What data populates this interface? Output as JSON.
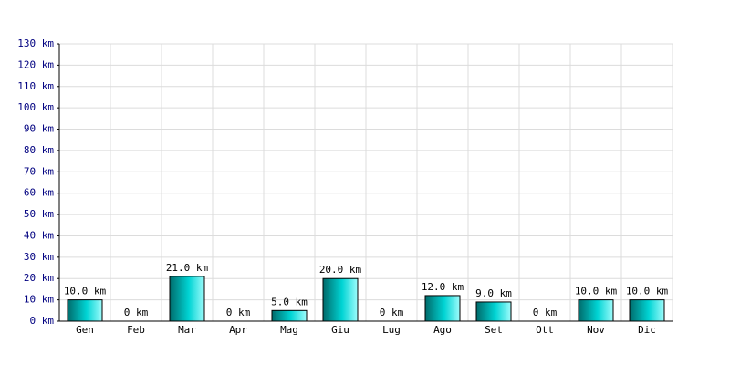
{
  "chart_data": {
    "type": "bar",
    "categories": [
      "Gen",
      "Feb",
      "Mar",
      "Apr",
      "Mag",
      "Giu",
      "Lug",
      "Ago",
      "Set",
      "Ott",
      "Nov",
      "Dic"
    ],
    "values": [
      10,
      0,
      21,
      0,
      5,
      20,
      0,
      12,
      9,
      0,
      10,
      10
    ],
    "value_labels": [
      "10.0 km",
      "0 km",
      "21.0 km",
      "0 km",
      "5.0 km",
      "20.0 km",
      "0 km",
      "12.0 km",
      "9.0 km",
      "0 km",
      "10.0 km",
      "10.0 km"
    ],
    "color": "#00d4d4",
    "ylim": [
      0,
      130
    ],
    "yticks": [
      {
        "value": 0,
        "label": "0 km"
      },
      {
        "value": 10,
        "label": "10 km"
      },
      {
        "value": 20,
        "label": "20 km"
      },
      {
        "value": 30,
        "label": "30 km"
      },
      {
        "value": 40,
        "label": "40 km"
      },
      {
        "value": 50,
        "label": "50 km"
      },
      {
        "value": 60,
        "label": "60 km"
      },
      {
        "value": 70,
        "label": "70 km"
      },
      {
        "value": 80,
        "label": "80 km"
      },
      {
        "value": 90,
        "label": "90 km"
      },
      {
        "value": 100,
        "label": "100 km"
      },
      {
        "value": 110,
        "label": "110 km"
      },
      {
        "value": 120,
        "label": "120 km"
      },
      {
        "value": 130,
        "label": "130 km"
      }
    ],
    "grid": true
  }
}
